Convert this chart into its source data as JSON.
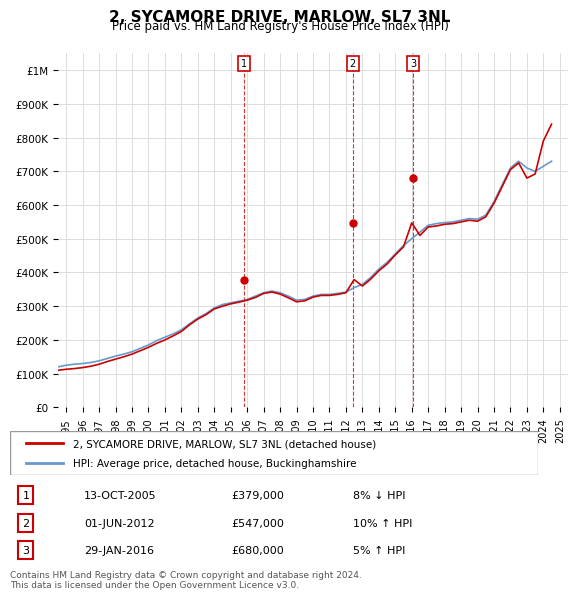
{
  "title": "2, SYCAMORE DRIVE, MARLOW, SL7 3NL",
  "subtitle": "Price paid vs. HM Land Registry's House Price Index (HPI)",
  "legend_line1": "2, SYCAMORE DRIVE, MARLOW, SL7 3NL (detached house)",
  "legend_line2": "HPI: Average price, detached house, Buckinghamshire",
  "transactions": [
    {
      "num": 1,
      "date": "13-OCT-2005",
      "price": 379000,
      "pct": "8%",
      "dir": "↓",
      "x": 2005.79
    },
    {
      "num": 2,
      "date": "01-JUN-2012",
      "price": 547000,
      "pct": "10%",
      "dir": "↑",
      "x": 2012.42
    },
    {
      "num": 3,
      "date": "29-JAN-2016",
      "price": 680000,
      "pct": "5%",
      "dir": "↑",
      "x": 2016.08
    }
  ],
  "footer": "Contains HM Land Registry data © Crown copyright and database right 2024.\nThis data is licensed under the Open Government Licence v3.0.",
  "hpi_color": "#6699cc",
  "price_color": "#cc0000",
  "vline_color": "#cc0000",
  "bg_color": "#ffffff",
  "grid_color": "#dddddd",
  "ylim": [
    0,
    1050000
  ],
  "xlim_start": 1994.5,
  "xlim_end": 2025.5,
  "hpi_data": {
    "years": [
      1994.5,
      1995.0,
      1995.5,
      1996.0,
      1996.5,
      1997.0,
      1997.5,
      1998.0,
      1998.5,
      1999.0,
      1999.5,
      2000.0,
      2000.5,
      2001.0,
      2001.5,
      2002.0,
      2002.5,
      2003.0,
      2003.5,
      2004.0,
      2004.5,
      2005.0,
      2005.5,
      2006.0,
      2006.5,
      2007.0,
      2007.5,
      2008.0,
      2008.5,
      2009.0,
      2009.5,
      2010.0,
      2010.5,
      2011.0,
      2011.5,
      2012.0,
      2012.5,
      2013.0,
      2013.5,
      2014.0,
      2014.5,
      2015.0,
      2015.5,
      2016.0,
      2016.5,
      2017.0,
      2017.5,
      2018.0,
      2018.5,
      2019.0,
      2019.5,
      2020.0,
      2020.5,
      2021.0,
      2021.5,
      2022.0,
      2022.5,
      2023.0,
      2023.5,
      2024.0,
      2024.5
    ],
    "values": [
      120000,
      125000,
      128000,
      130000,
      133000,
      138000,
      145000,
      152000,
      158000,
      165000,
      175000,
      185000,
      198000,
      208000,
      218000,
      230000,
      248000,
      265000,
      278000,
      295000,
      305000,
      310000,
      315000,
      320000,
      330000,
      340000,
      345000,
      340000,
      330000,
      318000,
      320000,
      330000,
      335000,
      335000,
      338000,
      342000,
      355000,
      365000,
      385000,
      410000,
      430000,
      455000,
      480000,
      500000,
      520000,
      540000,
      545000,
      548000,
      550000,
      555000,
      560000,
      558000,
      570000,
      610000,
      660000,
      710000,
      730000,
      710000,
      700000,
      715000,
      730000
    ]
  },
  "price_data": {
    "years": [
      1994.5,
      1995.0,
      1995.5,
      1996.0,
      1996.5,
      1997.0,
      1997.5,
      1998.0,
      1998.5,
      1999.0,
      1999.5,
      2000.0,
      2000.5,
      2001.0,
      2001.5,
      2002.0,
      2002.5,
      2003.0,
      2003.5,
      2004.0,
      2004.5,
      2005.0,
      2005.5,
      2006.0,
      2006.5,
      2007.0,
      2007.5,
      2008.0,
      2008.5,
      2009.0,
      2009.5,
      2010.0,
      2010.5,
      2011.0,
      2011.5,
      2012.0,
      2012.5,
      2013.0,
      2013.5,
      2014.0,
      2014.5,
      2015.0,
      2015.5,
      2016.0,
      2016.5,
      2017.0,
      2017.5,
      2018.0,
      2018.5,
      2019.0,
      2019.5,
      2020.0,
      2020.5,
      2021.0,
      2021.5,
      2022.0,
      2022.5,
      2023.0,
      2023.5,
      2024.0,
      2024.5
    ],
    "values": [
      110000,
      113000,
      115000,
      118000,
      122000,
      128000,
      136000,
      143000,
      150000,
      158000,
      168000,
      178000,
      190000,
      200000,
      212000,
      225000,
      245000,
      262000,
      275000,
      292000,
      300000,
      307000,
      312000,
      318000,
      326000,
      338000,
      342000,
      336000,
      325000,
      313000,
      316000,
      327000,
      332000,
      332000,
      335000,
      340000,
      379000,
      360000,
      380000,
      405000,
      425000,
      452000,
      476000,
      547000,
      510000,
      535000,
      538000,
      543000,
      545000,
      550000,
      555000,
      552000,
      565000,
      605000,
      655000,
      705000,
      725000,
      680000,
      692000,
      790000,
      840000
    ]
  }
}
